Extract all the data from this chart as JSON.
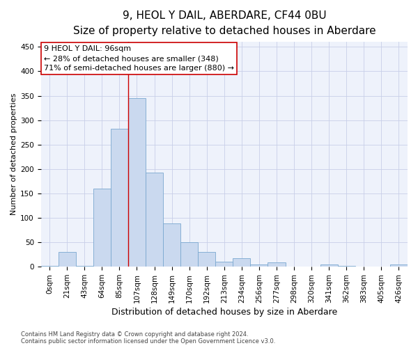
{
  "title": "9, HEOL Y DAIL, ABERDARE, CF44 0BU",
  "subtitle": "Size of property relative to detached houses in Aberdare",
  "xlabel": "Distribution of detached houses by size in Aberdare",
  "ylabel": "Number of detached properties",
  "bar_labels": [
    "0sqm",
    "21sqm",
    "43sqm",
    "64sqm",
    "85sqm",
    "107sqm",
    "128sqm",
    "149sqm",
    "170sqm",
    "192sqm",
    "213sqm",
    "234sqm",
    "256sqm",
    "277sqm",
    "298sqm",
    "320sqm",
    "341sqm",
    "362sqm",
    "383sqm",
    "405sqm",
    "426sqm"
  ],
  "bar_values": [
    2,
    30,
    2,
    160,
    283,
    345,
    192,
    88,
    50,
    30,
    10,
    17,
    5,
    9,
    1,
    1,
    5,
    2,
    1,
    1,
    4
  ],
  "bar_color": "#cad9ef",
  "bar_edge_color": "#7aa8d0",
  "ylim": [
    0,
    460
  ],
  "yticks": [
    0,
    50,
    100,
    150,
    200,
    250,
    300,
    350,
    400,
    450
  ],
  "property_line_x": 5.0,
  "property_line_color": "#cc0000",
  "annotation_text": "9 HEOL Y DAIL: 96sqm\n← 28% of detached houses are smaller (348)\n71% of semi-detached houses are larger (880) →",
  "annotation_box_color": "#ffffff",
  "annotation_box_edge": "#cc0000",
  "footer_line1": "Contains HM Land Registry data © Crown copyright and database right 2024.",
  "footer_line2": "Contains public sector information licensed under the Open Government Licence v3.0.",
  "bg_color": "#eef2fb",
  "grid_color": "#c8cfe8",
  "title_fontsize": 11,
  "subtitle_fontsize": 9.5,
  "xlabel_fontsize": 9,
  "ylabel_fontsize": 8,
  "tick_fontsize": 7.5,
  "footer_fontsize": 6,
  "annot_fontsize": 8
}
